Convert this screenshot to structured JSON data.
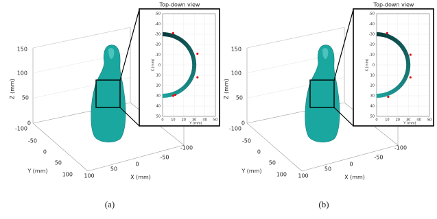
{
  "panels": [
    {
      "caption": "(a)",
      "z_label": "Z (mm)",
      "y_label": "Y (mm)",
      "x_label": "X (mm)",
      "z_ticks": [
        0,
        50,
        100,
        150
      ],
      "y_ticks": [
        -100,
        -50,
        0,
        50,
        100
      ],
      "x_ticks": [
        100,
        50,
        0,
        -50,
        -100
      ],
      "inset": {
        "title": "Top-down view",
        "x_label": "Y (mm)",
        "y_label": "X (mm)",
        "xlim": [
          0,
          50
        ],
        "ylim": [
          -50,
          50
        ],
        "xticks": [
          0,
          10,
          20,
          30,
          40,
          50
        ],
        "yticks": [
          -50,
          -40,
          -30,
          -20,
          -10,
          0,
          10,
          20,
          30,
          40,
          50
        ],
        "arc_radius": 30,
        "points": {
          "x": [
            10,
            33,
            33,
            12,
            10
          ],
          "y": [
            -31,
            -11,
            12,
            29,
            30
          ]
        }
      }
    },
    {
      "caption": "(b)",
      "z_label": "Z (mm)",
      "y_label": "Y (mm)",
      "x_label": "X (mm)",
      "z_ticks": [
        0,
        50,
        100,
        150
      ],
      "y_ticks": [
        -100,
        -50,
        0,
        50,
        100
      ],
      "x_ticks": [
        100,
        50,
        0,
        -50,
        -100
      ],
      "inset": {
        "title": "Top-down view",
        "x_label": "Y (mm)",
        "y_label": "X (mm)",
        "xlim": [
          0,
          50
        ],
        "ylim": [
          -50,
          50
        ],
        "xticks": [
          0,
          10,
          20,
          30,
          40,
          50
        ],
        "yticks": [
          -50,
          -40,
          -30,
          -20,
          -10,
          0,
          10,
          20,
          30,
          40,
          50
        ],
        "arc_radius": 30,
        "points": {
          "x": [
            10,
            32,
            32,
            11
          ],
          "y": [
            -31,
            -10,
            12,
            31
          ]
        }
      }
    }
  ]
}
